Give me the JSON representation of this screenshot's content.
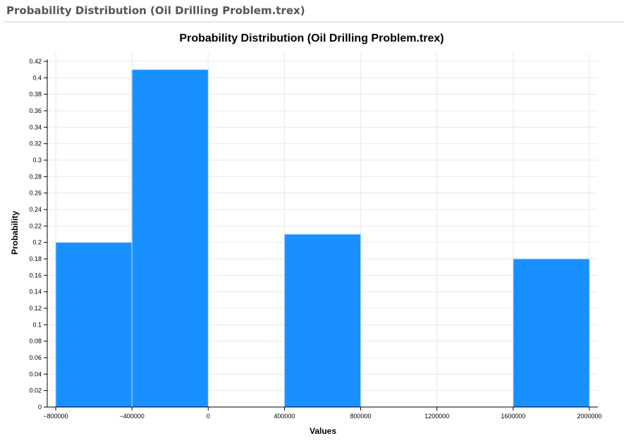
{
  "header": {
    "title": "Probability Distribution (Oil Drilling Problem.trex)"
  },
  "chart_data": {
    "type": "bar",
    "title": "Probability Distribution (Oil Drilling Problem.trex)",
    "xlabel": "Values",
    "ylabel": "Probability",
    "xlim": [
      -800000,
      2000000
    ],
    "ylim": [
      0,
      0.42
    ],
    "grid": true,
    "bar_color": "#1890ff",
    "x_ticks": [
      -800000,
      -400000,
      0,
      400000,
      800000,
      1200000,
      1600000,
      2000000
    ],
    "x_tick_labels": [
      "−800000",
      "−400000",
      "0",
      "400000",
      "800000",
      "1200000",
      "1600000",
      "2000000"
    ],
    "y_ticks": [
      0,
      0.02,
      0.04,
      0.06,
      0.08,
      0.1,
      0.12,
      0.14,
      0.16,
      0.18,
      0.2,
      0.22,
      0.24,
      0.26,
      0.28,
      0.3,
      0.32,
      0.34,
      0.36,
      0.38,
      0.4,
      0.42
    ],
    "y_tick_labels": [
      "0",
      "0.02",
      "0.04",
      "0.06",
      "0.08",
      "0.1",
      "0.12",
      "0.14",
      "0.16",
      "0.18",
      "0.2",
      "0.22",
      "0.24",
      "0.26",
      "0.28",
      "0.3",
      "0.32",
      "0.34",
      "0.36",
      "0.38",
      "0.4",
      "0.42"
    ],
    "bins": [
      {
        "from": -800000,
        "to": -400000,
        "value": 0.2
      },
      {
        "from": -400000,
        "to": 0,
        "value": 0.41
      },
      {
        "from": 400000,
        "to": 800000,
        "value": 0.21
      },
      {
        "from": 1600000,
        "to": 2000000,
        "value": 0.18
      }
    ]
  }
}
